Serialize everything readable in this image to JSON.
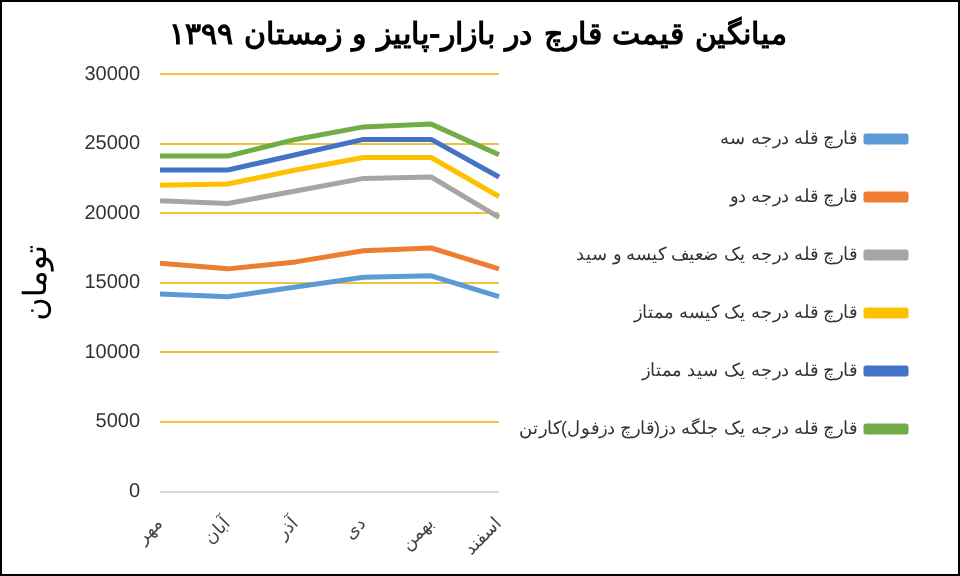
{
  "chart_data": {
    "type": "line",
    "title": "میانگین قیمت قارچ در بازار-پاییز و زمستان ۱۳۹۹",
    "ylabel": "تومان",
    "categories": [
      "مهر",
      "آبان",
      "آذر",
      "دی",
      "بهمن",
      "اسفند"
    ],
    "series": [
      {
        "name": "قارچ قله درجه سه",
        "color": "#5b9bd5",
        "values": [
          14200,
          14000,
          14700,
          15400,
          15500,
          14000
        ]
      },
      {
        "name": "قارچ قله درجه دو",
        "color": "#ed7d31",
        "values": [
          16400,
          16000,
          16500,
          17300,
          17500,
          16000
        ]
      },
      {
        "name": "قارچ قله درجه یک ضعیف کیسه و سید",
        "color": "#a5a5a5",
        "values": [
          20900,
          20700,
          21600,
          22500,
          22600,
          19700
        ]
      },
      {
        "name": "قارچ قله درجه یک کیسه ممتاز",
        "color": "#ffc000",
        "values": [
          22000,
          22100,
          23100,
          24000,
          24000,
          21200
        ]
      },
      {
        "name": "قارچ قله درجه یک سید ممتاز",
        "color": "#4472c4",
        "values": [
          23100,
          23100,
          24200,
          25300,
          25300,
          22600
        ]
      },
      {
        "name": "قارچ قله درجه یک جلگه دز(قارچ دزفول)کارتن",
        "color": "#70ad47",
        "values": [
          24100,
          24100,
          25300,
          26200,
          26400,
          24200
        ]
      }
    ],
    "ylim": [
      0,
      30000
    ],
    "yticks": [
      0,
      5000,
      10000,
      15000,
      20000,
      25000,
      30000
    ],
    "grid": "y",
    "legend": "right",
    "marker": "none",
    "line_style": "solid"
  }
}
